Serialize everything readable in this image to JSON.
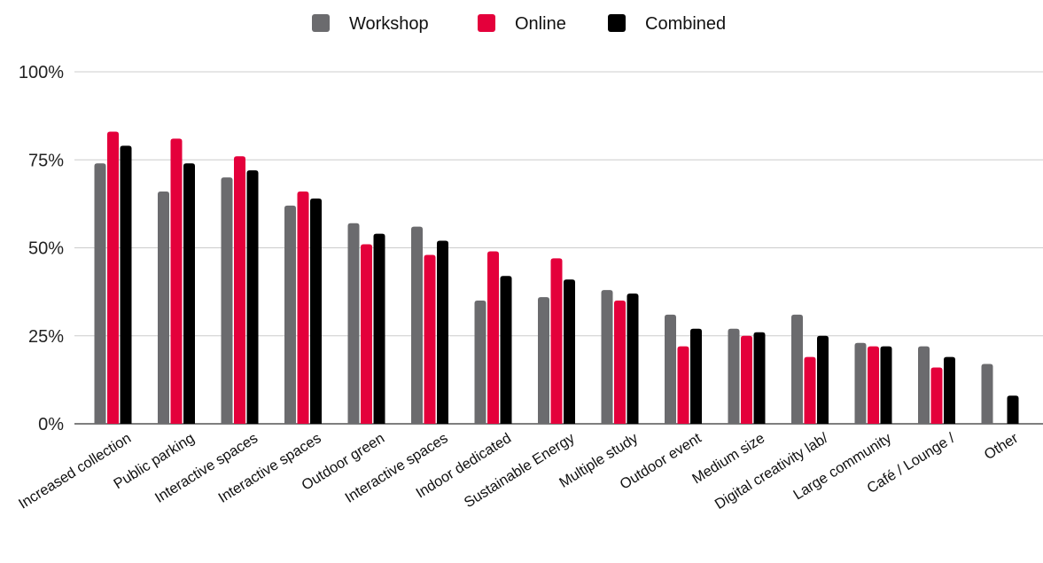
{
  "chart_data": {
    "type": "bar",
    "title": "",
    "xlabel": "",
    "ylabel": "",
    "ylim": [
      0,
      100
    ],
    "yticks": [
      0,
      25,
      50,
      75,
      100
    ],
    "ytick_labels": [
      "0%",
      "25%",
      "50%",
      "75%",
      "100%"
    ],
    "grid": true,
    "legend_position": "top-center",
    "categories": [
      "Increased collection",
      "Public parking",
      "Interactive spaces",
      "Interactive spaces",
      "Outdoor green",
      "Interactive spaces",
      "Indoor dedicated",
      "Sustainable Energy",
      "Multiple study",
      "Outdoor event",
      "Medium size",
      "Digital creativity lab/",
      "Large community",
      "Café / Lounge /",
      "Other"
    ],
    "series": [
      {
        "name": "Workshop",
        "color": "#6b6b6e",
        "values": [
          74,
          66,
          70,
          62,
          57,
          56,
          35,
          36,
          38,
          31,
          27,
          31,
          23,
          22,
          17
        ]
      },
      {
        "name": "Online",
        "color": "#e4003b",
        "values": [
          83,
          81,
          76,
          66,
          51,
          48,
          49,
          47,
          35,
          22,
          25,
          19,
          22,
          16,
          0
        ]
      },
      {
        "name": "Combined",
        "color": "#000000",
        "values": [
          79,
          74,
          72,
          64,
          54,
          52,
          42,
          41,
          37,
          27,
          26,
          25,
          22,
          19,
          8
        ]
      }
    ]
  }
}
